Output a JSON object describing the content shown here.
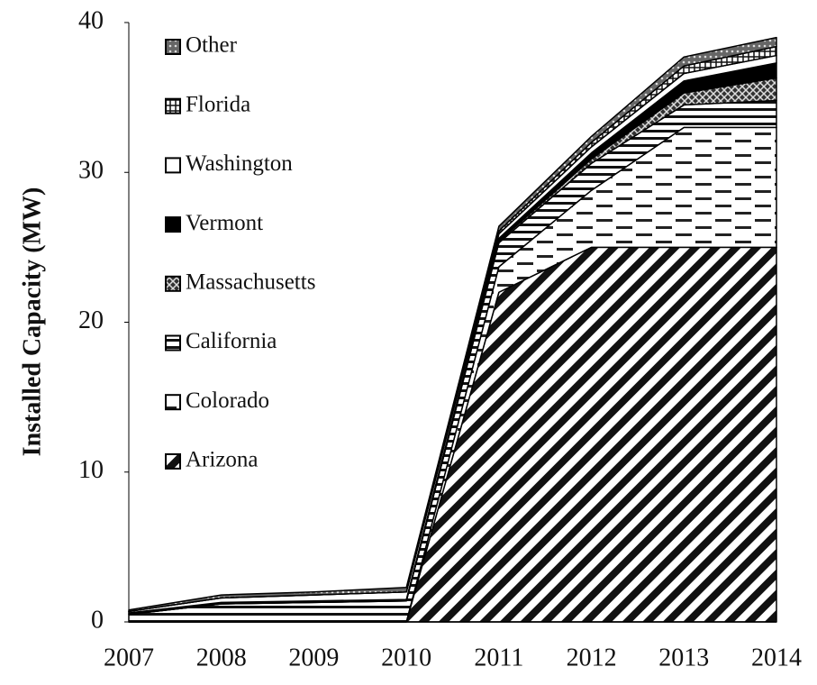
{
  "chart_data": {
    "type": "stacked_area",
    "y_label": "Installed Capacity (MW)",
    "categories": [
      "2007",
      "2008",
      "2009",
      "2010",
      "2011",
      "2012",
      "2013",
      "2014"
    ],
    "ylim": [
      0,
      40
    ],
    "yticks": [
      0,
      10,
      20,
      30,
      40
    ],
    "legend": "top-left",
    "series": [
      {
        "name": "Arizona",
        "color": "#000000",
        "pattern": "diagonal",
        "values": [
          0,
          0,
          0,
          0,
          22,
          25,
          25,
          25
        ]
      },
      {
        "name": "Colorado",
        "color": "#000000",
        "pattern": "dashes",
        "values": [
          0,
          0,
          0,
          0,
          1.7,
          3.8,
          8,
          8
        ]
      },
      {
        "name": "California",
        "color": "#000000",
        "pattern": "horizontal",
        "values": [
          0.5,
          1.2,
          1.3,
          1.4,
          1.6,
          1.8,
          1.5,
          1.8
        ]
      },
      {
        "name": "Massachusetts",
        "color": "#000000",
        "pattern": "crosshatch",
        "values": [
          0,
          0,
          0,
          0,
          0.1,
          0.3,
          0.8,
          1.5
        ]
      },
      {
        "name": "Vermont",
        "color": "#000000",
        "pattern": "solid",
        "values": [
          0.1,
          0.1,
          0.1,
          0.1,
          0.2,
          0.4,
          0.8,
          1.0
        ]
      },
      {
        "name": "Washington",
        "color": "#000000",
        "pattern": "white",
        "values": [
          0.1,
          0.3,
          0.4,
          0.5,
          0.3,
          0.4,
          0.5,
          0.5
        ]
      },
      {
        "name": "Florida",
        "color": "#000000",
        "pattern": "grid",
        "values": [
          0,
          0,
          0,
          0,
          0.2,
          0.3,
          0.5,
          0.6
        ]
      },
      {
        "name": "Other",
        "color": "#000000",
        "pattern": "dots",
        "values": [
          0.1,
          0.2,
          0.2,
          0.3,
          0.3,
          0.4,
          0.6,
          0.6
        ]
      }
    ]
  }
}
